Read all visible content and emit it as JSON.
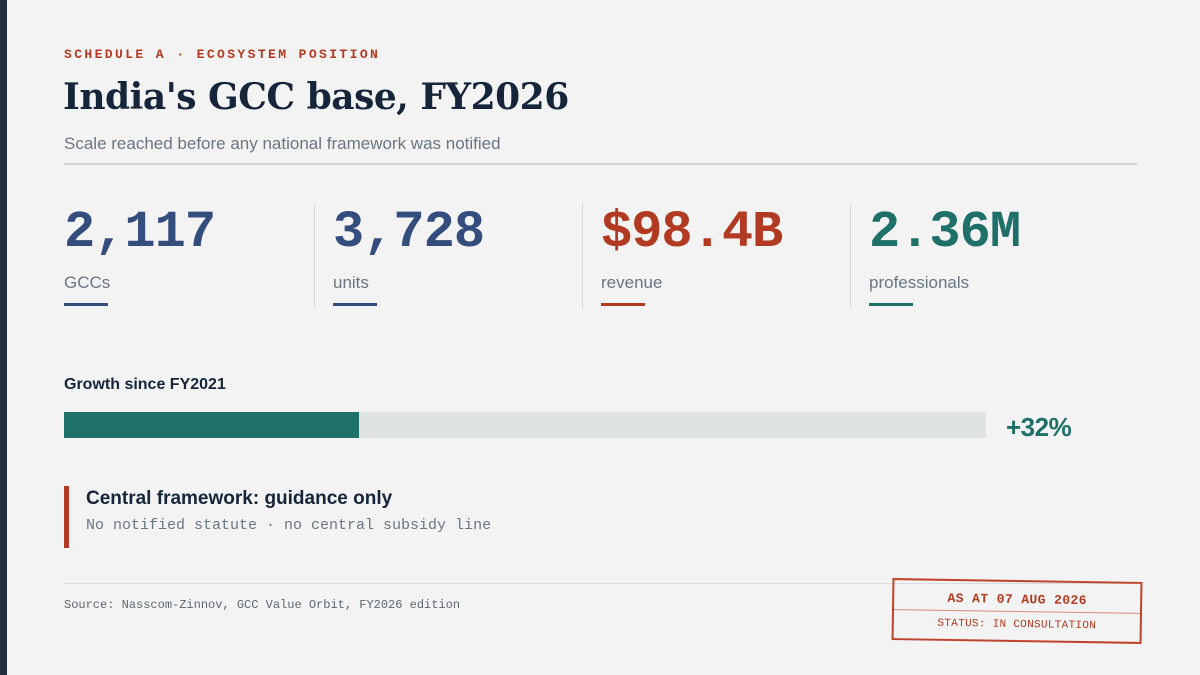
{
  "header": {
    "eyebrow": "SCHEDULE A · ECOSYSTEM POSITION",
    "title": "India's GCC base, FY2026",
    "subtitle": "Scale reached before any national framework was notified"
  },
  "stats": [
    {
      "value": "2,117",
      "label": "GCCs",
      "color": "#344d7c"
    },
    {
      "value": "3,728",
      "label": "units",
      "color": "#344d7c"
    },
    {
      "value": "$98.4B",
      "label": "revenue",
      "color": "#b33a22"
    },
    {
      "value": "2.36M",
      "label": "professionals",
      "color": "#1e7068"
    }
  ],
  "growth": {
    "label": "Growth since FY2021",
    "value_text": "+32%",
    "fill_fraction": 0.32,
    "color": "#1e7068"
  },
  "callout": {
    "title": "Central framework: guidance only",
    "detail": "No notified statute · no central subsidy line"
  },
  "footer": {
    "source": "Source: Nasscom-Zinnov, GCC Value Orbit, FY2026 edition"
  },
  "stamp": {
    "date_line": "AS AT 07 AUG 2026",
    "status_line": "STATUS: IN CONSULTATION"
  }
}
